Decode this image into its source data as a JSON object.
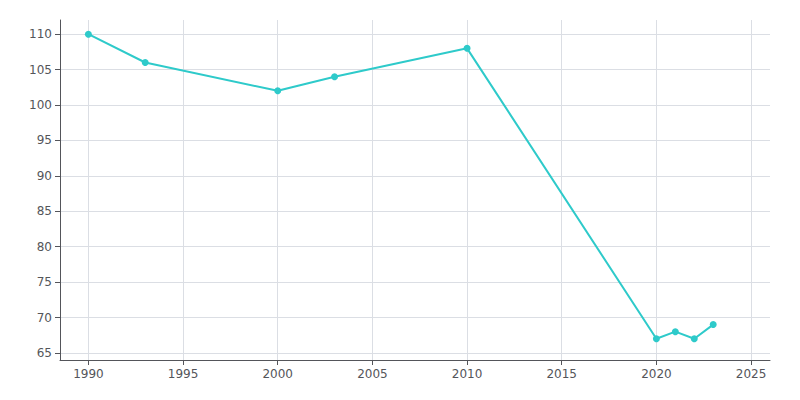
{
  "chart_data": {
    "type": "line",
    "x": [
      1990,
      1993,
      2000,
      2003,
      2010,
      2020,
      2021,
      2022,
      2023
    ],
    "values": [
      110,
      106,
      102,
      104,
      108,
      67,
      68,
      67,
      69
    ],
    "color": "#2ecaca",
    "marker": "circle",
    "xlim": [
      1988.5,
      2026
    ],
    "ylim": [
      64,
      112
    ],
    "xticks": [
      1990,
      1995,
      2000,
      2005,
      2010,
      2015,
      2020,
      2025
    ],
    "yticks": [
      65,
      70,
      75,
      80,
      85,
      90,
      95,
      100,
      105,
      110
    ],
    "grid": true
  }
}
